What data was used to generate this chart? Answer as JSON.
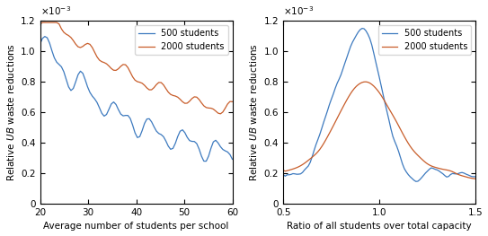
{
  "left_xlabel": "Average number of students per school",
  "left_ylabel": "Relative $UB$ waste reductions",
  "right_xlabel": "Ratio of all students over total capacity",
  "right_ylabel": "Relative $UB$ waste reductions",
  "legend_labels": [
    "500 students",
    "2000 students"
  ],
  "line_colors_500": "#3d7abf",
  "line_colors_2000": "#c85d2a",
  "left_xlim": [
    20,
    60
  ],
  "left_ylim": [
    0,
    0.0012
  ],
  "right_xlim": [
    0.5,
    1.5
  ],
  "right_ylim": [
    0,
    0.0012
  ],
  "left_xticks": [
    20,
    30,
    40,
    50,
    60
  ],
  "right_xticks": [
    0.5,
    1.0,
    1.5
  ],
  "linewidth": 0.9,
  "figsize": [
    5.43,
    2.63
  ],
  "dpi": 100
}
